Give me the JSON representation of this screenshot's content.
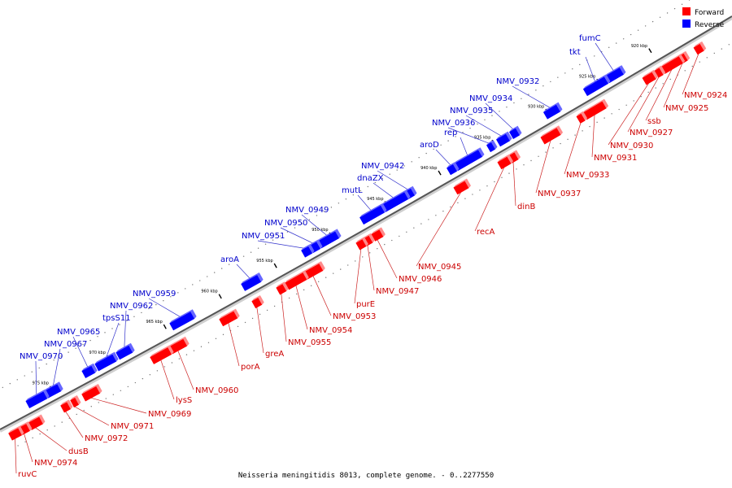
{
  "caption": "Neisseria meningitidis 8013, complete genome. - 0..2277550",
  "legend": [
    {
      "label": "Forward",
      "color": "#ff0000"
    },
    {
      "label": "Reverse",
      "color": "#0000ff"
    }
  ],
  "colors": {
    "forward": "#ff0000",
    "reverse": "#0000ff",
    "forward_label": "#cc0000",
    "reverse_label": "#0000cc",
    "backbone": "#888888"
  },
  "kbp_labels": [
    "920 kbp",
    "925 kbp",
    "930 kbp",
    "935 kbp",
    "940 kbp",
    "945 kbp",
    "950 kbp",
    "955 kbp",
    "960 kbp",
    "965 kbp",
    "970 kbp",
    "975 kbp"
  ],
  "forward_genes": [
    {
      "name": "NMV_0924",
      "slot": "a"
    },
    {
      "name": "NMV_0925",
      "slot": "b"
    },
    {
      "name": "ssb",
      "slot": "c"
    },
    {
      "name": "NMV_0927",
      "slot": "d"
    },
    {
      "name": "NMV_0930",
      "slot": "e"
    },
    {
      "name": "NMV_0931",
      "slot": "f"
    },
    {
      "name": "NMV_0933",
      "slot": "g"
    },
    {
      "name": "NMV_0937",
      "slot": "h"
    },
    {
      "name": "dinB",
      "slot": "i"
    },
    {
      "name": "recA",
      "slot": "j"
    },
    {
      "name": "NMV_0945",
      "slot": "k"
    },
    {
      "name": "NMV_0946",
      "slot": "l"
    },
    {
      "name": "NMV_0947",
      "slot": "m"
    },
    {
      "name": "purE",
      "slot": "n"
    },
    {
      "name": "NMV_0953",
      "slot": "o"
    },
    {
      "name": "NMV_0954",
      "slot": "p"
    },
    {
      "name": "NMV_0955",
      "slot": "q"
    },
    {
      "name": "greA",
      "slot": "r"
    },
    {
      "name": "porA",
      "slot": "s"
    },
    {
      "name": "NMV_0960",
      "slot": "t"
    },
    {
      "name": "lysS",
      "slot": "u"
    },
    {
      "name": "NMV_0969",
      "slot": "v"
    },
    {
      "name": "NMV_0971",
      "slot": "w"
    },
    {
      "name": "NMV_0972",
      "slot": "x"
    },
    {
      "name": "dusB",
      "slot": "y"
    },
    {
      "name": "NMV_0974",
      "slot": "z"
    },
    {
      "name": "ruvC",
      "slot": "aa"
    }
  ],
  "reverse_genes": [
    {
      "name": "fumC"
    },
    {
      "name": "tkt"
    },
    {
      "name": "NMV_0932"
    },
    {
      "name": "NMV_0934"
    },
    {
      "name": "NMV_0935"
    },
    {
      "name": "NMV_0936"
    },
    {
      "name": "rep"
    },
    {
      "name": "aroD"
    },
    {
      "name": "NMV_0942"
    },
    {
      "name": "dnaZX"
    },
    {
      "name": "mutL"
    },
    {
      "name": "NMV_0949"
    },
    {
      "name": "NMV_0950"
    },
    {
      "name": "NMV_0951"
    },
    {
      "name": "aroA"
    },
    {
      "name": "NMV_0959"
    },
    {
      "name": "NMV_0962"
    },
    {
      "name": "tpsS11"
    },
    {
      "name": "NMV_0965"
    },
    {
      "name": "NMV_0967"
    },
    {
      "name": "NMV_0970"
    }
  ]
}
